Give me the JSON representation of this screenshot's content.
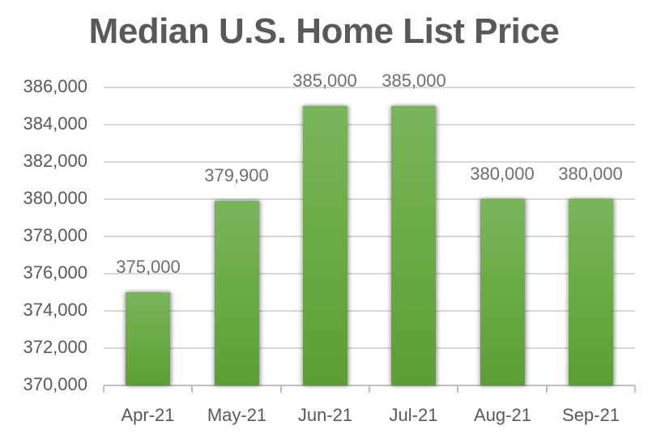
{
  "chart_data": {
    "type": "bar",
    "title": "Median U.S. Home List Price",
    "xlabel": "",
    "ylabel": "",
    "categories": [
      "Apr-21",
      "May-21",
      "Jun-21",
      "Jul-21",
      "Aug-21",
      "Sep-21"
    ],
    "values": [
      375000,
      379900,
      385000,
      385000,
      380000,
      380000
    ],
    "data_labels": [
      "375,000",
      "379,900",
      "385,000",
      "385,000",
      "380,000",
      "380,000"
    ],
    "ylim": [
      370000,
      386000
    ],
    "yticks": [
      "386,000",
      "384,000",
      "382,000",
      "380,000",
      "378,000",
      "376,000",
      "374,000",
      "372,000",
      "370,000"
    ],
    "grid": true,
    "legend": null,
    "bar_color": "#70ad47"
  }
}
